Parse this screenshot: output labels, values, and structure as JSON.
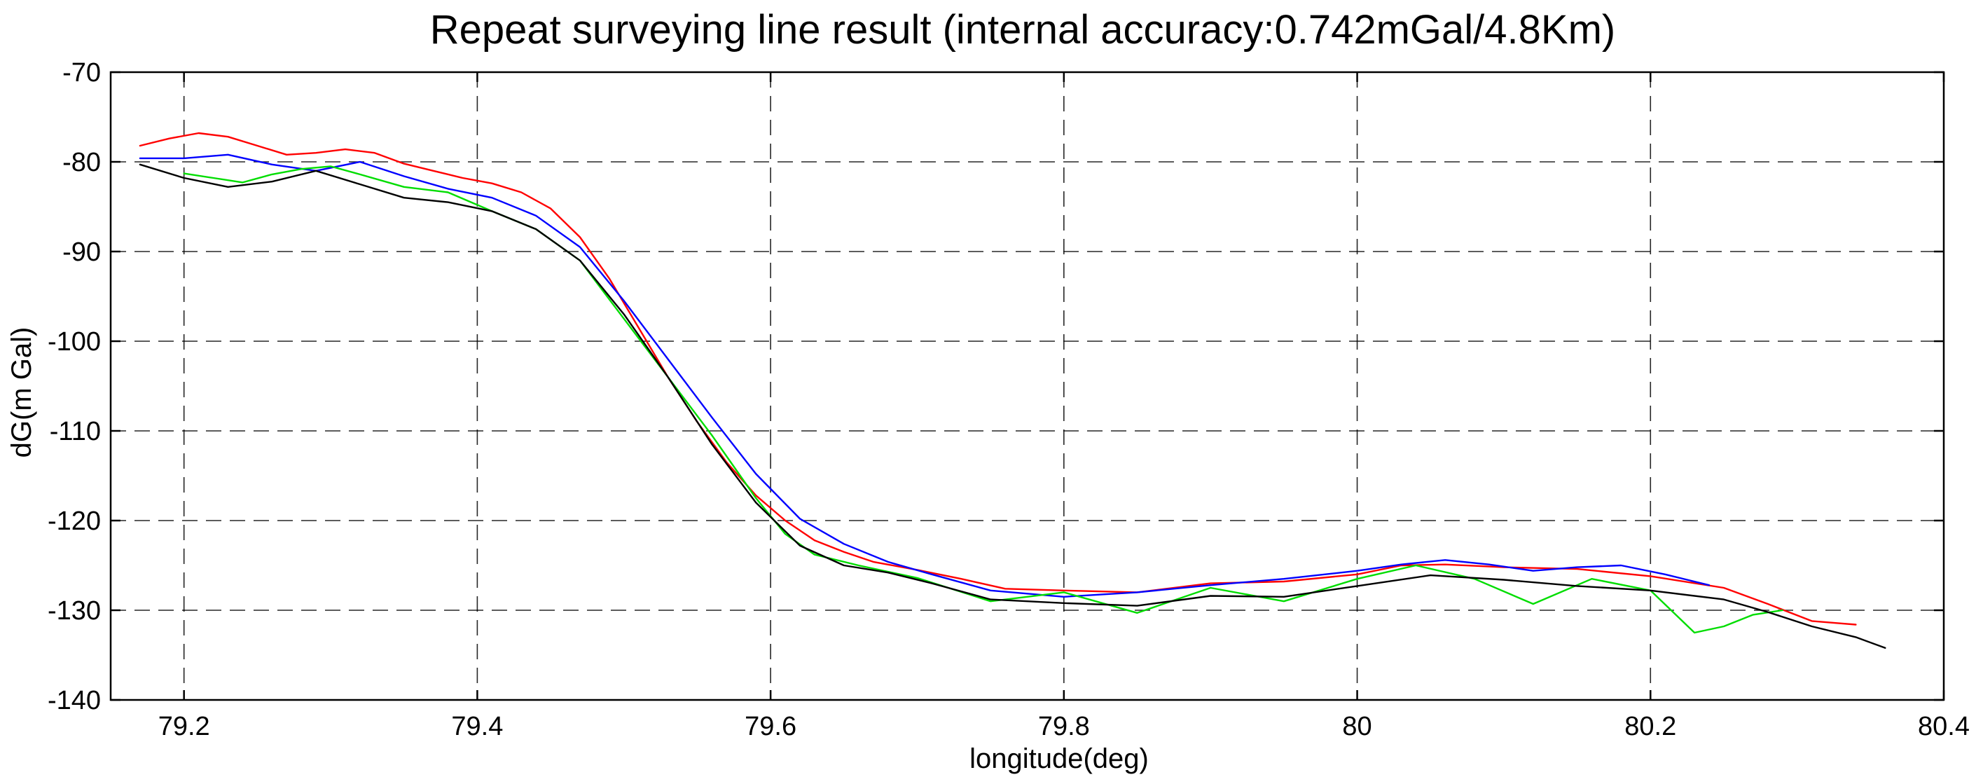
{
  "chart_data": {
    "type": "line",
    "title": "Repeat surveying line result (internal accuracy:0.742mGal/4.8Km)",
    "xlabel": "longitude(deg)",
    "ylabel": "dG(m Gal)",
    "xlim": [
      79.15,
      80.4
    ],
    "ylim": [
      -140,
      -70
    ],
    "xticks": [
      79.2,
      79.4,
      79.6,
      79.8,
      80,
      80.2,
      80.4
    ],
    "xtick_labels": [
      "79.2",
      "79.4",
      "79.6",
      "79.8",
      "80",
      "80.2",
      "80.4"
    ],
    "yticks": [
      -70,
      -80,
      -90,
      -100,
      -110,
      -120,
      -130,
      -140
    ],
    "ytick_labels": [
      "-70",
      "-80",
      "-90",
      "-100",
      "-110",
      "-120",
      "-130",
      "-140"
    ],
    "grid": true,
    "legend": "none",
    "series": [
      {
        "color": "#ff0000",
        "x": [
          79.17,
          79.19,
          79.21,
          79.23,
          79.25,
          79.27,
          79.29,
          79.31,
          79.33,
          79.35,
          79.37,
          79.39,
          79.41,
          79.43,
          79.45,
          79.47,
          79.49,
          79.51,
          79.53,
          79.55,
          79.57,
          79.59,
          79.61,
          79.63,
          79.65,
          79.67,
          79.7,
          79.73,
          79.76,
          79.8,
          79.85,
          79.9,
          79.95,
          80.0,
          80.03,
          80.06,
          80.1,
          80.15,
          80.2,
          80.25,
          80.28,
          80.31,
          80.34
        ],
        "y": [
          -78.2,
          -77.4,
          -76.8,
          -77.2,
          -78.2,
          -79.2,
          -79.0,
          -78.6,
          -79.0,
          -80.2,
          -81.0,
          -81.8,
          -82.4,
          -83.4,
          -85.2,
          -88.4,
          -93.0,
          -98.5,
          -104.0,
          -109.0,
          -113.5,
          -117.2,
          -120.0,
          -122.2,
          -123.5,
          -124.6,
          -125.5,
          -126.5,
          -127.6,
          -127.8,
          -128.0,
          -127.0,
          -126.8,
          -126.0,
          -125.0,
          -124.9,
          -125.2,
          -125.4,
          -126.2,
          -127.5,
          -129.3,
          -131.2,
          -131.6
        ]
      },
      {
        "color": "#0000ff",
        "x": [
          79.17,
          79.2,
          79.23,
          79.26,
          79.29,
          79.32,
          79.35,
          79.38,
          79.41,
          79.44,
          79.47,
          79.5,
          79.53,
          79.56,
          79.59,
          79.62,
          79.65,
          79.68,
          79.71,
          79.75,
          79.8,
          79.85,
          79.9,
          79.95,
          80.0,
          80.03,
          80.06,
          80.09,
          80.12,
          80.15,
          80.18,
          80.21,
          80.24
        ],
        "y": [
          -79.6,
          -79.6,
          -79.2,
          -80.3,
          -81.0,
          -80.0,
          -81.6,
          -83.0,
          -84.0,
          -86.0,
          -89.5,
          -95.5,
          -102.0,
          -108.5,
          -114.8,
          -119.8,
          -122.6,
          -124.6,
          -126.0,
          -127.8,
          -128.5,
          -128.0,
          -127.2,
          -126.5,
          -125.6,
          -124.9,
          -124.4,
          -124.9,
          -125.6,
          -125.2,
          -125.0,
          -126.0,
          -127.2
        ]
      },
      {
        "color": "#00dd00",
        "x": [
          79.2,
          79.22,
          79.24,
          79.26,
          79.28,
          79.3,
          79.32,
          79.35,
          79.38,
          79.41,
          79.44,
          79.47,
          79.5,
          79.53,
          79.56,
          79.59,
          79.61,
          79.63,
          79.66,
          79.7,
          79.75,
          79.8,
          79.85,
          79.9,
          79.95,
          80.0,
          80.04,
          80.08,
          80.12,
          80.16,
          80.2,
          80.23,
          80.25,
          80.27,
          80.29
        ],
        "y": [
          -81.3,
          -81.8,
          -82.3,
          -81.4,
          -80.8,
          -80.5,
          -81.4,
          -82.8,
          -83.4,
          -85.5,
          -87.5,
          -91.0,
          -97.5,
          -104.0,
          -110.5,
          -117.5,
          -121.5,
          -123.8,
          -125.0,
          -126.4,
          -129.0,
          -128.0,
          -130.3,
          -127.5,
          -129.0,
          -126.5,
          -125.0,
          -126.5,
          -129.3,
          -126.5,
          -127.8,
          -132.5,
          -131.8,
          -130.5,
          -130.0
        ]
      },
      {
        "color": "#000000",
        "x": [
          79.17,
          79.2,
          79.23,
          79.26,
          79.29,
          79.32,
          79.35,
          79.38,
          79.41,
          79.44,
          79.47,
          79.5,
          79.53,
          79.56,
          79.59,
          79.62,
          79.65,
          79.68,
          79.71,
          79.75,
          79.8,
          79.85,
          79.9,
          79.95,
          80.0,
          80.05,
          80.1,
          80.15,
          80.2,
          80.25,
          80.28,
          80.31,
          80.34,
          80.36
        ],
        "y": [
          -80.3,
          -81.8,
          -82.8,
          -82.2,
          -81.0,
          -82.5,
          -84.0,
          -84.5,
          -85.5,
          -87.5,
          -91.0,
          -97.0,
          -104.0,
          -111.5,
          -118.0,
          -122.8,
          -125.0,
          -125.8,
          -127.0,
          -128.8,
          -129.2,
          -129.5,
          -128.4,
          -128.5,
          -127.3,
          -126.1,
          -126.6,
          -127.3,
          -127.8,
          -128.8,
          -130.2,
          -131.8,
          -133.0,
          -134.2
        ]
      }
    ]
  }
}
